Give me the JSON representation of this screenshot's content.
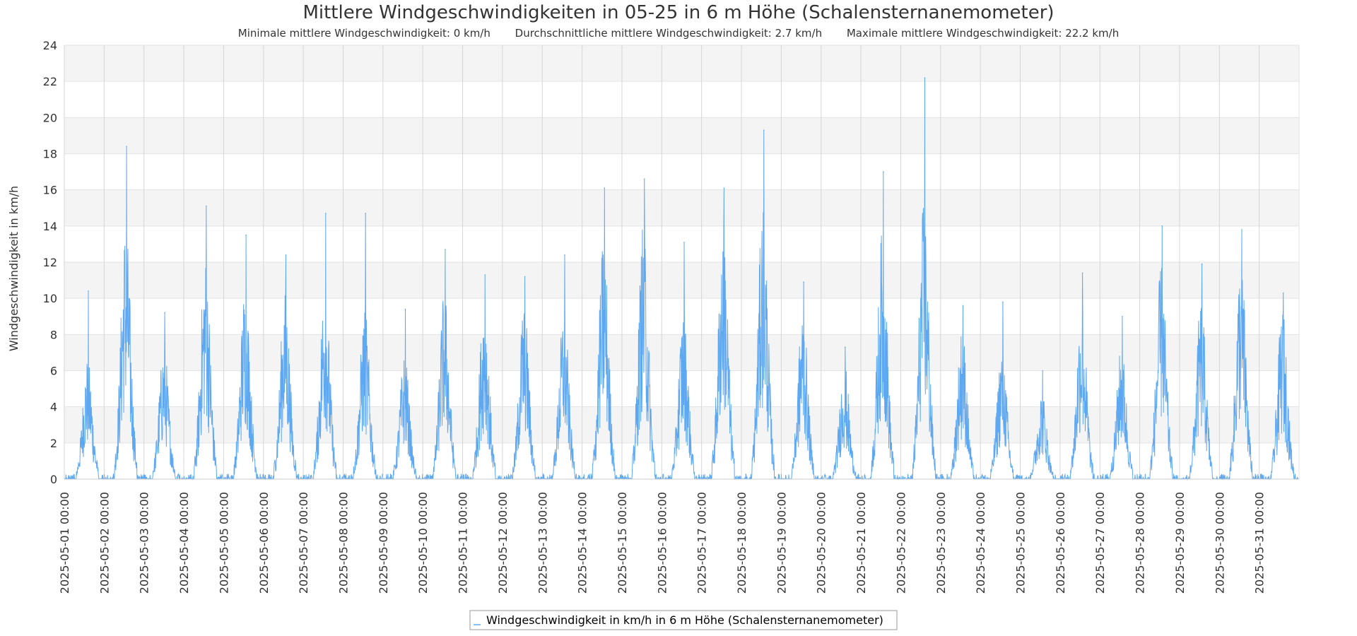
{
  "chart_data": {
    "type": "line",
    "title": "Mittlere Windgeschwindigkeiten in 05-25 in 6 m Höhe (Schalensternanemometer)",
    "subtitle_items": [
      "Minimale mittlere Windgeschwindigkeit: 0 km/h",
      "Durchschnittliche mittlere Windgeschwindigkeit: 2.7 km/h",
      "Maximale mittlere Windgeschwindigkeit: 22.2 km/h"
    ],
    "ylabel": "Windgeschwindigkeit in km/h",
    "ylim": [
      0,
      24
    ],
    "yticks": [
      0,
      2,
      4,
      6,
      8,
      10,
      12,
      14,
      16,
      18,
      20,
      22,
      24
    ],
    "xlim": [
      "2025-05-01 00:00",
      "2025-06-01 00:00"
    ],
    "xticks": [
      "2025-05-01 00:00",
      "2025-05-02 00:00",
      "2025-05-03 00:00",
      "2025-05-04 00:00",
      "2025-05-05 00:00",
      "2025-05-06 00:00",
      "2025-05-07 00:00",
      "2025-05-08 00:00",
      "2025-05-09 00:00",
      "2025-05-10 00:00",
      "2025-05-11 00:00",
      "2025-05-12 00:00",
      "2025-05-13 00:00",
      "2025-05-14 00:00",
      "2025-05-15 00:00",
      "2025-05-16 00:00",
      "2025-05-17 00:00",
      "2025-05-18 00:00",
      "2025-05-19 00:00",
      "2025-05-20 00:00",
      "2025-05-21 00:00",
      "2025-05-22 00:00",
      "2025-05-23 00:00",
      "2025-05-24 00:00",
      "2025-05-25 00:00",
      "2025-05-26 00:00",
      "2025-05-27 00:00",
      "2025-05-28 00:00",
      "2025-05-29 00:00",
      "2025-05-30 00:00",
      "2025-05-31 00:00"
    ],
    "grid": true,
    "legend": "bottom-center",
    "series": [
      {
        "name": "Windgeschwindigkeit in km/h in 6 m Höhe (Schalensternanemometer)",
        "color": "#5ea8f2",
        "daily_pattern": [
          {
            "date": "2025-05-01",
            "peak": 10.4,
            "typical_max": 6.8,
            "peak_hour": 14
          },
          {
            "date": "2025-05-02",
            "peak": 18.4,
            "typical_max": 14.5,
            "peak_hour": 13
          },
          {
            "date": "2025-05-03",
            "peak": 9.2,
            "typical_max": 7.5,
            "peak_hour": 12
          },
          {
            "date": "2025-05-04",
            "peak": 15.1,
            "typical_max": 12.5,
            "peak_hour": 13
          },
          {
            "date": "2025-05-05",
            "peak": 13.5,
            "typical_max": 11.0,
            "peak_hour": 13
          },
          {
            "date": "2025-05-06",
            "peak": 12.4,
            "typical_max": 10.5,
            "peak_hour": 13
          },
          {
            "date": "2025-05-07",
            "peak": 14.7,
            "typical_max": 11.0,
            "peak_hour": 13
          },
          {
            "date": "2025-05-08",
            "peak": 14.7,
            "typical_max": 9.5,
            "peak_hour": 13
          },
          {
            "date": "2025-05-09",
            "peak": 9.4,
            "typical_max": 7.0,
            "peak_hour": 13
          },
          {
            "date": "2025-05-10",
            "peak": 12.7,
            "typical_max": 10.5,
            "peak_hour": 13
          },
          {
            "date": "2025-05-11",
            "peak": 11.3,
            "typical_max": 10.0,
            "peak_hour": 13
          },
          {
            "date": "2025-05-12",
            "peak": 11.2,
            "typical_max": 10.0,
            "peak_hour": 13
          },
          {
            "date": "2025-05-13",
            "peak": 12.4,
            "typical_max": 9.5,
            "peak_hour": 13
          },
          {
            "date": "2025-05-14",
            "peak": 16.1,
            "typical_max": 13.5,
            "peak_hour": 13
          },
          {
            "date": "2025-05-15",
            "peak": 16.6,
            "typical_max": 14.5,
            "peak_hour": 13
          },
          {
            "date": "2025-05-16",
            "peak": 13.1,
            "typical_max": 9.5,
            "peak_hour": 13
          },
          {
            "date": "2025-05-17",
            "peak": 16.1,
            "typical_max": 14.5,
            "peak_hour": 13
          },
          {
            "date": "2025-05-18",
            "peak": 19.3,
            "typical_max": 15.5,
            "peak_hour": 13
          },
          {
            "date": "2025-05-19",
            "peak": 10.9,
            "typical_max": 9.5,
            "peak_hour": 13
          },
          {
            "date": "2025-05-20",
            "peak": 7.3,
            "typical_max": 6.5,
            "peak_hour": 14
          },
          {
            "date": "2025-05-21",
            "peak": 17.0,
            "typical_max": 14.0,
            "peak_hour": 13
          },
          {
            "date": "2025-05-22",
            "peak": 22.2,
            "typical_max": 15.5,
            "peak_hour": 14
          },
          {
            "date": "2025-05-23",
            "peak": 9.6,
            "typical_max": 8.5,
            "peak_hour": 13
          },
          {
            "date": "2025-05-24",
            "peak": 9.8,
            "typical_max": 7.5,
            "peak_hour": 13
          },
          {
            "date": "2025-05-25",
            "peak": 6.0,
            "typical_max": 5.0,
            "peak_hour": 13
          },
          {
            "date": "2025-05-26",
            "peak": 11.4,
            "typical_max": 10.0,
            "peak_hour": 13
          },
          {
            "date": "2025-05-27",
            "peak": 9.0,
            "typical_max": 7.5,
            "peak_hour": 13
          },
          {
            "date": "2025-05-28",
            "peak": 14.0,
            "typical_max": 12.0,
            "peak_hour": 13
          },
          {
            "date": "2025-05-29",
            "peak": 11.9,
            "typical_max": 10.0,
            "peak_hour": 13
          },
          {
            "date": "2025-05-30",
            "peak": 13.8,
            "typical_max": 12.5,
            "peak_hour": 13
          },
          {
            "date": "2025-05-31",
            "peak": 10.3,
            "typical_max": 9.5,
            "peak_hour": 14
          }
        ]
      }
    ]
  }
}
